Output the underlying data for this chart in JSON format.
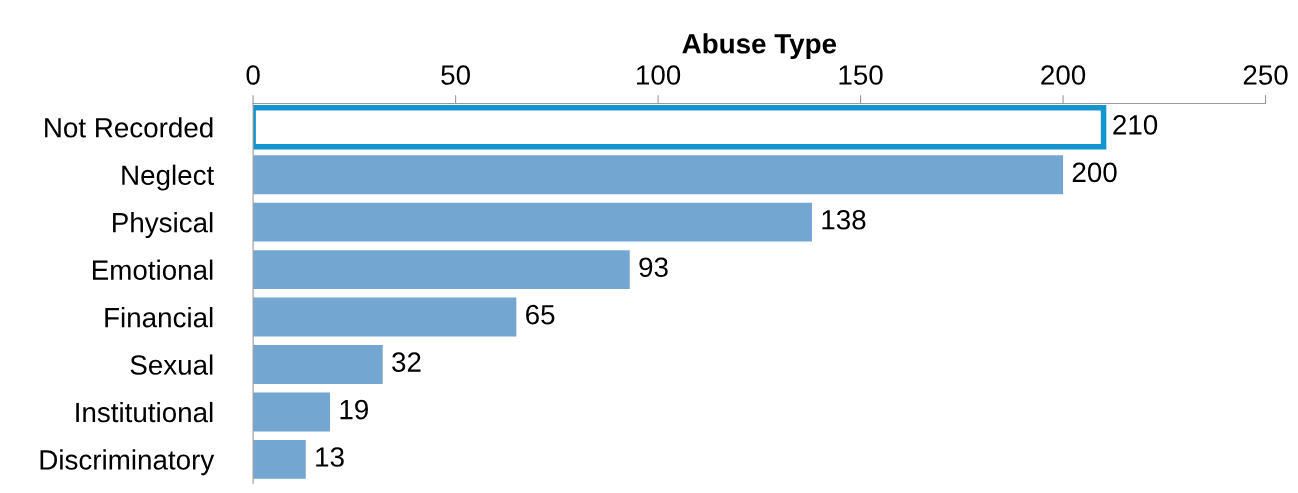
{
  "chart_data": {
    "type": "bar",
    "orientation": "horizontal",
    "title": "Abuse Type",
    "categories": [
      "Not Recorded",
      "Neglect",
      "Physical",
      "Emotional",
      "Financial",
      "Sexual",
      "Institutional",
      "Discriminatory"
    ],
    "values": [
      210,
      200,
      138,
      93,
      65,
      32,
      19,
      13
    ],
    "colors": [
      "#ffffff",
      "#73a6d1",
      "#73a6d1",
      "#73a6d1",
      "#73a6d1",
      "#73a6d1",
      "#73a6d1",
      "#73a6d1"
    ],
    "xlim": [
      0,
      250
    ],
    "xticks": [
      0,
      50,
      100,
      150,
      200,
      250
    ],
    "data_labels": true,
    "grid": false,
    "legend": false
  }
}
